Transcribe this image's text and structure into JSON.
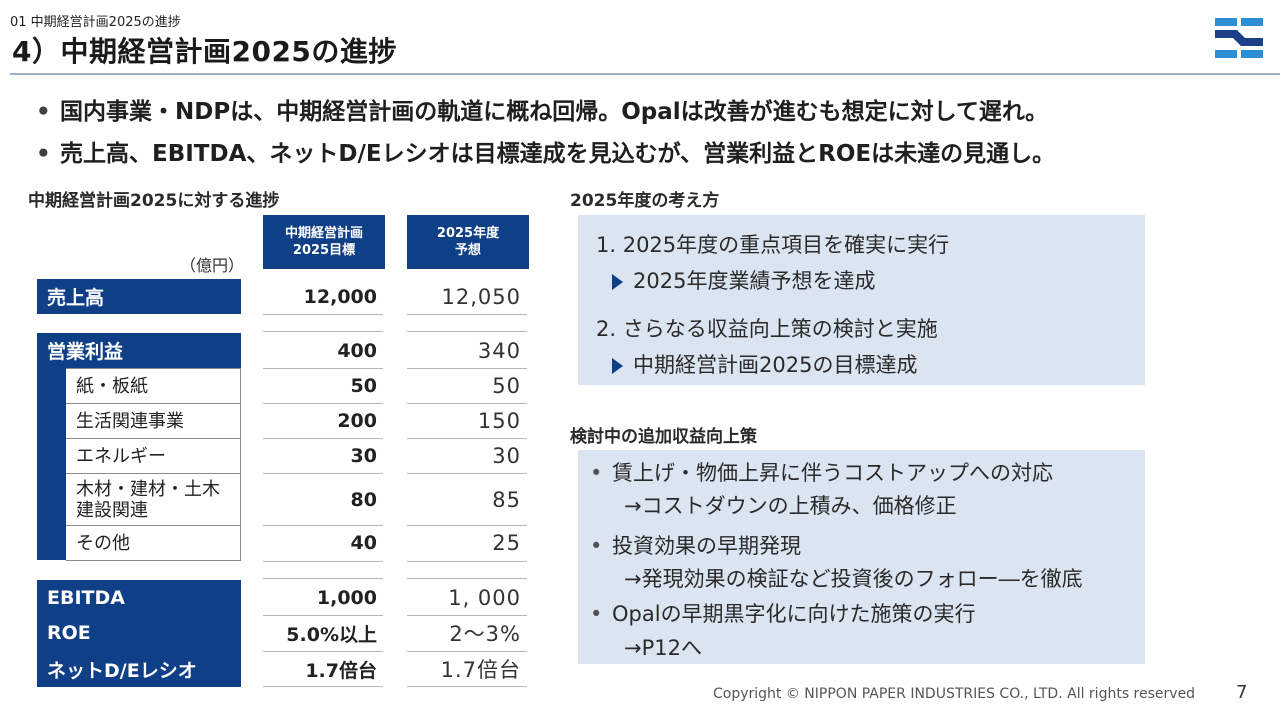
{
  "header": {
    "breadcrumb": "01  中期経営計画2025の進捗",
    "title": "4）中期経営計画2025の進捗"
  },
  "summary_bullets": [
    "国内事業・NDPは、中期経営計画の軌道に概ね回帰。Opalは改善が進むも想定に対して遅れ。",
    "売上高、EBITDA、ネットD/Eレシオは目標達成を見込むが、営業利益とROEは未達の見通し。"
  ],
  "progress_table": {
    "heading": "中期経営計画2025に対する進捗",
    "unit": "（億円）",
    "col_target": [
      "中期経営計画",
      "2025目標"
    ],
    "col_forecast": [
      "2025年度",
      "予想"
    ],
    "rows": {
      "sales": {
        "label": "売上高",
        "target": "12,000",
        "forecast": "12,050"
      },
      "operating_profit": {
        "label": "営業利益",
        "target": "400",
        "forecast": "340"
      },
      "paper": {
        "label": "紙・板紙",
        "target": "50",
        "forecast": "50"
      },
      "life": {
        "label": "生活関連事業",
        "target": "200",
        "forecast": "150"
      },
      "energy": {
        "label": "エネルギー",
        "target": "30",
        "forecast": "30"
      },
      "wood_l1": "木材・建材・土木",
      "wood_l2": "建設関連",
      "wood": {
        "target": "80",
        "forecast": "85"
      },
      "other": {
        "label": "その他",
        "target": "40",
        "forecast": "25"
      },
      "ebitda": {
        "label": "EBITDA",
        "target": "1,000",
        "forecast": "1, 000"
      },
      "roe": {
        "label": "ROE",
        "target": "5.0%以上",
        "forecast": "2～3%"
      },
      "de": {
        "label": "ネットD/Eレシオ",
        "target": "1.7倍台",
        "forecast": "1.7倍台"
      }
    }
  },
  "approach": {
    "heading": "2025年度の考え方",
    "item1": "1. 2025年度の重点項目を確実に実行",
    "item1_sub": "2025年度業績予想を達成",
    "item2": "2. さらなる収益向上策の検討と実施",
    "item2_sub": "中期経営計画2025の目標達成"
  },
  "measures": {
    "heading": "検討中の追加収益向上策",
    "b1": "賃上げ・物価上昇に伴うコストアップへの対応",
    "b1_sub": "→コストダウンの上積み、価格修正",
    "b2": "投資効果の早期発現",
    "b2_sub": "→発現効果の検証など投資後のフォロー―を徹底",
    "b3": "Opalの早期黒字化に向けた施策の実行",
    "b3_sub": "→P12へ"
  },
  "footer": {
    "copyright": "Copyright © NIPPON PAPER INDUSTRIES CO., LTD. All rights reserved",
    "page": "7"
  },
  "colors": {
    "navy": "#0f3f86",
    "light_blue_box": "#dbe5f1",
    "logo_blue": "#2f8fd6",
    "logo_navy": "#1d3f8a"
  }
}
